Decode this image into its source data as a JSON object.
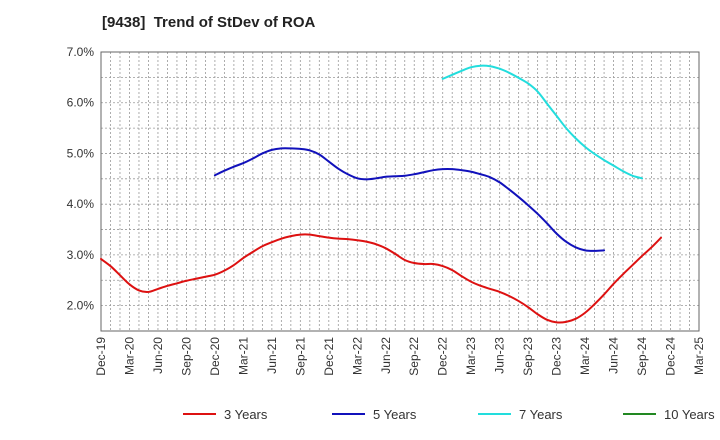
{
  "chart_data": {
    "type": "line",
    "title": "[9438]  Trend of StDev of ROA",
    "xlabel": "",
    "ylabel": "",
    "x_tick_labels": [
      "Dec-19",
      "Mar-20",
      "Jun-20",
      "Sep-20",
      "Dec-20",
      "Mar-21",
      "Jun-21",
      "Sep-21",
      "Dec-21",
      "Mar-22",
      "Jun-22",
      "Sep-22",
      "Dec-22",
      "Mar-23",
      "Jun-23",
      "Sep-23",
      "Dec-23",
      "Mar-24",
      "Jun-24",
      "Sep-24",
      "Dec-24",
      "Mar-25"
    ],
    "y_tick_labels": [
      "2.0%",
      "3.0%",
      "4.0%",
      "5.0%",
      "6.0%",
      "7.0%"
    ],
    "ylim": [
      1.5,
      7.0
    ],
    "grid": true,
    "legend_position": "bottom",
    "series": [
      {
        "name": "3 Years",
        "color": "#dd1111",
        "values": [
          [
            "Dec-19",
            2.92
          ],
          [
            "Jan-20",
            2.78
          ],
          [
            "Feb-20",
            2.6
          ],
          [
            "Mar-20",
            2.42
          ],
          [
            "Apr-20",
            2.3
          ],
          [
            "May-20",
            2.27
          ],
          [
            "Jun-20",
            2.33
          ],
          [
            "Jul-20",
            2.39
          ],
          [
            "Aug-20",
            2.44
          ],
          [
            "Sep-20",
            2.49
          ],
          [
            "Oct-20",
            2.53
          ],
          [
            "Nov-20",
            2.57
          ],
          [
            "Dec-20",
            2.61
          ],
          [
            "Jan-21",
            2.69
          ],
          [
            "Feb-21",
            2.8
          ],
          [
            "Mar-21",
            2.94
          ],
          [
            "Apr-21",
            3.06
          ],
          [
            "May-21",
            3.17
          ],
          [
            "Jun-21",
            3.25
          ],
          [
            "Jul-21",
            3.32
          ],
          [
            "Aug-21",
            3.37
          ],
          [
            "Sep-21",
            3.4
          ],
          [
            "Oct-21",
            3.4
          ],
          [
            "Nov-21",
            3.37
          ],
          [
            "Dec-21",
            3.34
          ],
          [
            "Jan-22",
            3.32
          ],
          [
            "Feb-22",
            3.31
          ],
          [
            "Mar-22",
            3.29
          ],
          [
            "Apr-22",
            3.26
          ],
          [
            "May-22",
            3.21
          ],
          [
            "Jun-22",
            3.13
          ],
          [
            "Jul-22",
            3.02
          ],
          [
            "Aug-22",
            2.9
          ],
          [
            "Sep-22",
            2.84
          ],
          [
            "Oct-22",
            2.82
          ],
          [
            "Nov-22",
            2.82
          ],
          [
            "Dec-22",
            2.78
          ],
          [
            "Jan-23",
            2.7
          ],
          [
            "Feb-23",
            2.58
          ],
          [
            "Mar-23",
            2.47
          ],
          [
            "Apr-23",
            2.39
          ],
          [
            "May-23",
            2.33
          ],
          [
            "Jun-23",
            2.27
          ],
          [
            "Jul-23",
            2.19
          ],
          [
            "Aug-23",
            2.09
          ],
          [
            "Sep-23",
            1.97
          ],
          [
            "Oct-23",
            1.83
          ],
          [
            "Nov-23",
            1.72
          ],
          [
            "Dec-23",
            1.67
          ],
          [
            "Jan-24",
            1.68
          ],
          [
            "Feb-24",
            1.74
          ],
          [
            "Mar-24",
            1.86
          ],
          [
            "Apr-24",
            2.03
          ],
          [
            "May-24",
            2.22
          ],
          [
            "Jun-24",
            2.43
          ],
          [
            "Jul-24",
            2.62
          ],
          [
            "Aug-24",
            2.8
          ],
          [
            "Sep-24",
            2.98
          ],
          [
            "Oct-24",
            3.15
          ],
          [
            "Nov-24",
            3.34
          ]
        ]
      },
      {
        "name": "5 Years",
        "color": "#1111bb",
        "values": [
          [
            "Dec-20",
            4.57
          ],
          [
            "Jan-21",
            4.66
          ],
          [
            "Feb-21",
            4.74
          ],
          [
            "Mar-21",
            4.81
          ],
          [
            "Apr-21",
            4.9
          ],
          [
            "May-21",
            5.0
          ],
          [
            "Jun-21",
            5.07
          ],
          [
            "Jul-21",
            5.1
          ],
          [
            "Aug-21",
            5.1
          ],
          [
            "Sep-21",
            5.09
          ],
          [
            "Oct-21",
            5.06
          ],
          [
            "Nov-21",
            4.98
          ],
          [
            "Dec-21",
            4.84
          ],
          [
            "Jan-22",
            4.7
          ],
          [
            "Feb-22",
            4.59
          ],
          [
            "Mar-22",
            4.51
          ],
          [
            "Apr-22",
            4.49
          ],
          [
            "May-22",
            4.51
          ],
          [
            "Jun-22",
            4.54
          ],
          [
            "Jul-22",
            4.55
          ],
          [
            "Aug-22",
            4.56
          ],
          [
            "Sep-22",
            4.59
          ],
          [
            "Oct-22",
            4.63
          ],
          [
            "Nov-22",
            4.67
          ],
          [
            "Dec-22",
            4.69
          ],
          [
            "Jan-23",
            4.69
          ],
          [
            "Feb-23",
            4.67
          ],
          [
            "Mar-23",
            4.64
          ],
          [
            "Apr-23",
            4.59
          ],
          [
            "May-23",
            4.53
          ],
          [
            "Jun-23",
            4.43
          ],
          [
            "Jul-23",
            4.29
          ],
          [
            "Aug-23",
            4.14
          ],
          [
            "Sep-23",
            3.98
          ],
          [
            "Oct-23",
            3.81
          ],
          [
            "Nov-23",
            3.62
          ],
          [
            "Dec-23",
            3.42
          ],
          [
            "Jan-24",
            3.26
          ],
          [
            "Feb-24",
            3.15
          ],
          [
            "Mar-24",
            3.09
          ],
          [
            "Apr-24",
            3.08
          ],
          [
            "May-24",
            3.09
          ]
        ]
      },
      {
        "name": "7 Years",
        "color": "#22dddd",
        "values": [
          [
            "Dec-22",
            6.47
          ],
          [
            "Jan-23",
            6.55
          ],
          [
            "Feb-23",
            6.63
          ],
          [
            "Mar-23",
            6.7
          ],
          [
            "Apr-23",
            6.73
          ],
          [
            "May-23",
            6.72
          ],
          [
            "Jun-23",
            6.67
          ],
          [
            "Jul-23",
            6.59
          ],
          [
            "Aug-23",
            6.49
          ],
          [
            "Sep-23",
            6.38
          ],
          [
            "Oct-23",
            6.22
          ],
          [
            "Nov-23",
            5.98
          ],
          [
            "Dec-23",
            5.74
          ],
          [
            "Jan-24",
            5.5
          ],
          [
            "Feb-24",
            5.3
          ],
          [
            "Mar-24",
            5.13
          ],
          [
            "Apr-24",
            4.99
          ],
          [
            "May-24",
            4.87
          ],
          [
            "Jun-24",
            4.76
          ],
          [
            "Jul-24",
            4.65
          ],
          [
            "Aug-24",
            4.56
          ],
          [
            "Sep-24",
            4.51
          ]
        ]
      },
      {
        "name": "10 Years",
        "color": "#228822",
        "values": []
      }
    ]
  }
}
